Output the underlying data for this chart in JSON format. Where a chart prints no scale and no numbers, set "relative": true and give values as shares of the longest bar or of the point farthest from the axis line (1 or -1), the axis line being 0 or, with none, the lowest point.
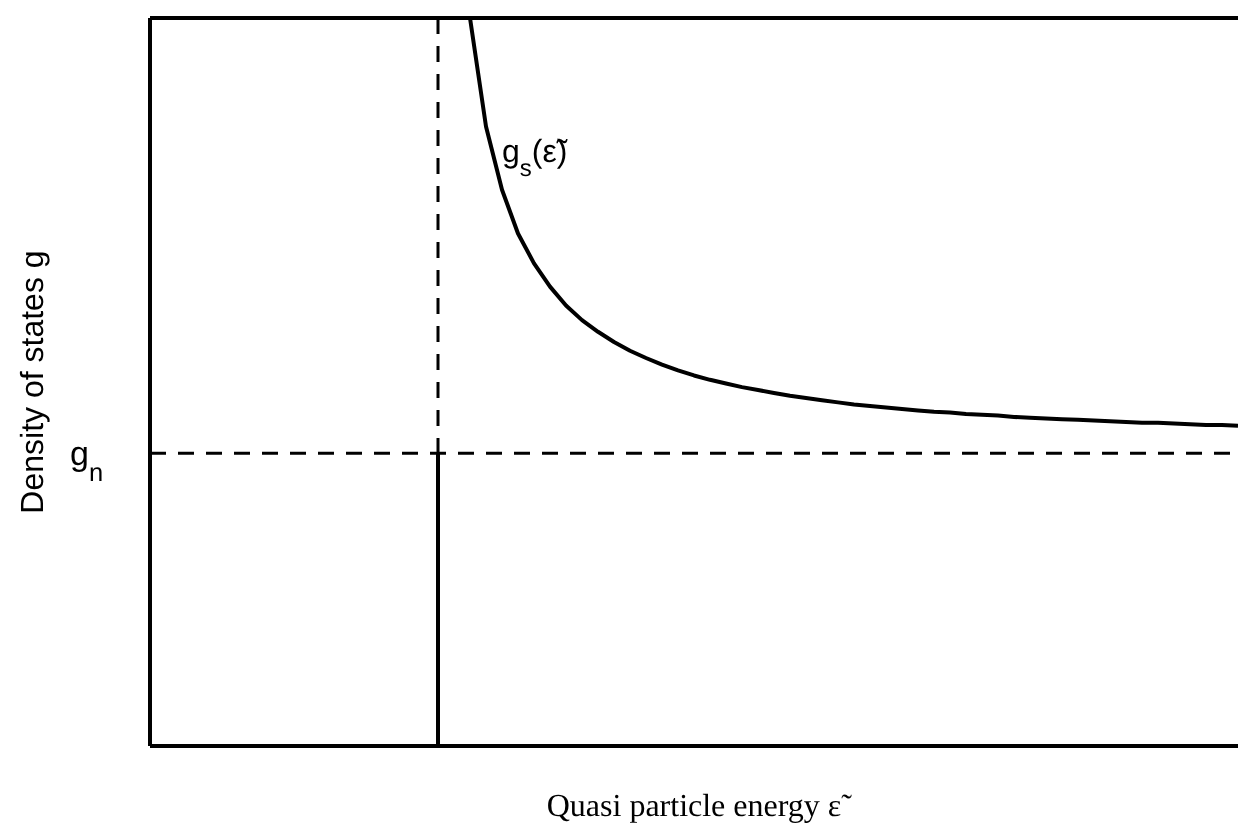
{
  "chart_data": {
    "type": "line",
    "relative": true,
    "xlabel": "Quasi particle energy ε̃",
    "ylabel": "Density of states g",
    "legend": false,
    "grid": false,
    "marker": "none",
    "line_style": "solid",
    "categories": [
      null,
      null,
      null,
      null,
      null,
      null,
      null,
      null,
      null,
      null,
      null,
      null,
      null,
      null,
      null,
      null,
      null,
      null,
      null,
      null,
      null,
      null,
      null,
      null,
      null,
      null,
      null,
      null,
      null,
      null,
      null,
      null,
      null,
      null,
      null,
      null,
      null,
      null,
      null,
      null,
      null,
      null,
      null,
      null,
      null,
      null,
      null,
      null,
      null,
      null,
      null,
      null,
      null,
      null,
      null,
      null,
      null,
      null,
      null,
      null,
      null,
      null,
      null,
      null,
      null,
      null,
      null,
      null,
      null
    ],
    "series": [
      {
        "name": "g$_{s}$(ε̃)",
        "color": "#000000",
        "values": [
          null,
          null,
          null,
          null,
          null,
          null,
          null,
          null,
          null,
          null,
          null,
          null,
          null,
          null,
          null,
          null,
          null,
          null,
          null,
          null,
          1.0,
          0.851,
          0.764,
          0.704,
          0.663,
          0.631,
          0.605,
          0.585,
          0.569,
          0.555,
          0.543,
          0.533,
          0.524,
          0.516,
          0.509,
          0.503,
          0.498,
          0.493,
          0.489,
          0.485,
          0.481,
          0.478,
          0.475,
          0.472,
          0.469,
          0.467,
          0.465,
          0.463,
          0.461,
          0.459,
          0.458,
          0.456,
          0.455,
          0.454,
          0.452,
          0.451,
          0.45,
          0.449,
          0.448,
          0.447,
          0.446,
          0.445,
          0.444,
          0.444,
          0.443,
          0.442,
          0.441,
          0.441,
          0.44
        ]
      }
    ],
    "ref_lines": [
      {
        "axis": "y",
        "value": 0.402,
        "label": "g$_{n}$",
        "line_style": "dashed",
        "color": "#000000"
      }
    ]
  }
}
